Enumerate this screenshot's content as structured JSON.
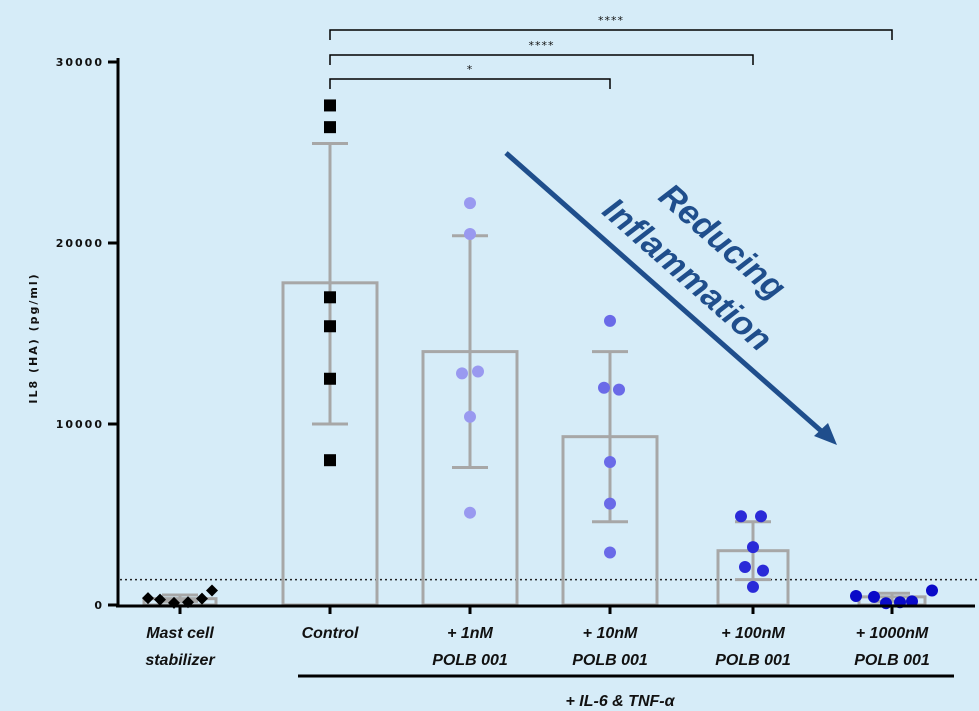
{
  "chart_data": {
    "type": "bar",
    "ylabel": "IL8 (HA) (pg/ml)",
    "ylim": [
      0,
      30000
    ],
    "yticks": [
      0,
      10000,
      20000,
      30000
    ],
    "ytick_labels": [
      "0",
      "10000",
      "20000",
      "30000"
    ],
    "grid": false,
    "threshold": 1400,
    "categories": [
      {
        "line1": "Mast cell",
        "line2": "stabilizer"
      },
      {
        "line1": "Control",
        "line2": ""
      },
      {
        "line1": "+ 1nM",
        "line2": "POLB 001"
      },
      {
        "line1": "+ 10nM",
        "line2": "POLB 001"
      },
      {
        "line1": "+ 100nM",
        "line2": "POLB 001"
      },
      {
        "line1": "+ 1000nM",
        "line2": "POLB 001"
      }
    ],
    "means": [
      350,
      17800,
      14000,
      9300,
      3000,
      450
    ],
    "err_low": [
      200,
      10000,
      7600,
      4600,
      1400,
      200
    ],
    "err_high": [
      550,
      25500,
      20400,
      14000,
      4600,
      650
    ],
    "points": [
      [
        380,
        300,
        120,
        150,
        350,
        800
      ],
      [
        27600,
        26400,
        17000,
        15400,
        12500,
        8000
      ],
      [
        22200,
        20500,
        12900,
        12800,
        10400,
        5100
      ],
      [
        15700,
        12000,
        11900,
        7900,
        5600,
        2900
      ],
      [
        4900,
        4900,
        3200,
        2100,
        1900,
        1000
      ],
      [
        500,
        450,
        100,
        150,
        200,
        800
      ]
    ],
    "markers": [
      "diamond",
      "square",
      "circle",
      "circle",
      "circle",
      "circle"
    ],
    "marker_colors": [
      "#000000",
      "#000000",
      "#9999f0",
      "#6a6ae8",
      "#2a2ad8",
      "#0a0ac8"
    ],
    "bar_color": "#a7a7a7",
    "significance": [
      {
        "from": 1,
        "to": 5,
        "label": "****"
      },
      {
        "from": 1,
        "to": 4,
        "label": "****"
      },
      {
        "from": 1,
        "to": 3,
        "label": "*"
      }
    ],
    "treatment_label": "+ IL-6 & TNF-α",
    "annotation": {
      "line1": "Reducing",
      "line2": "Inflammation",
      "color": "#1f4e8c"
    }
  }
}
